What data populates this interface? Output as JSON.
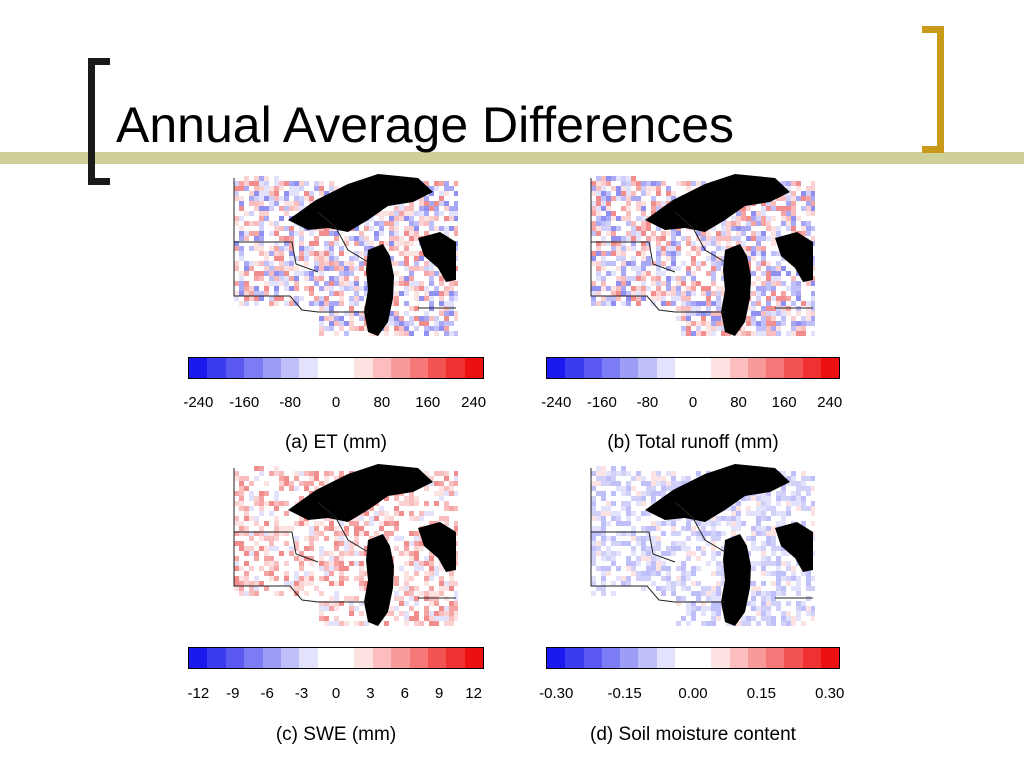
{
  "slide": {
    "title": "Annual Average Differences"
  },
  "palette": [
    "#1a1aee",
    "#3b3bf0",
    "#5a5af2",
    "#7c7cf4",
    "#9d9df6",
    "#bfbff9",
    "#e2e2fc",
    "#ffffff",
    "#ffffff",
    "#fde2e2",
    "#fbbdbd",
    "#f89a9a",
    "#f57777",
    "#f25454",
    "#ef3131",
    "#ec1010"
  ],
  "panels": [
    {
      "id": "a",
      "caption": "(a) ET (mm)",
      "ticks": [
        "-240",
        "-160",
        "-80",
        "0",
        "80",
        "160",
        "240"
      ],
      "tint": "mixed"
    },
    {
      "id": "b",
      "caption": "(b) Total runoff (mm)",
      "ticks": [
        "-240",
        "-160",
        "-80",
        "0",
        "80",
        "160",
        "240"
      ],
      "tint": "mixed"
    },
    {
      "id": "c",
      "caption": "(c) SWE (mm)",
      "ticks": [
        "-12",
        "-9",
        "-6",
        "-3",
        "0",
        "3",
        "6",
        "9",
        "12"
      ],
      "tint": "red"
    },
    {
      "id": "d",
      "caption": "(d) Soil moisture content",
      "ticks": [
        "-0.30",
        "-0.15",
        "0.00",
        "0.15",
        "0.30"
      ],
      "tint": "blue"
    }
  ]
}
